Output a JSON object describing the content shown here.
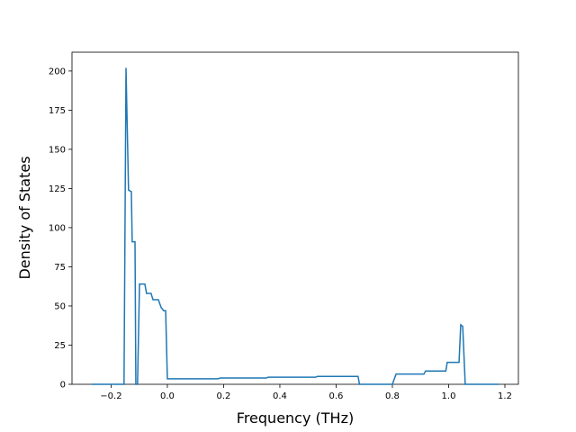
{
  "chart_data": {
    "type": "line",
    "xlabel": "Frequency (THz)",
    "ylabel": "Density of States",
    "x": [
      -0.269,
      -0.154,
      -0.147,
      -0.138,
      -0.128,
      -0.125,
      -0.115,
      -0.112,
      -0.106,
      -0.099,
      -0.08,
      -0.074,
      -0.058,
      -0.051,
      -0.032,
      -0.022,
      -0.013,
      -0.006,
      0.0,
      0.179,
      0.189,
      0.352,
      0.358,
      0.527,
      0.533,
      0.678,
      0.683,
      0.8,
      0.813,
      0.912,
      0.918,
      0.99,
      0.995,
      1.037,
      1.043,
      1.05,
      1.059,
      1.178
    ],
    "series": [
      {
        "name": "DOS",
        "color": "#1f77b4",
        "values": [
          0,
          0,
          202,
          124,
          123,
          91,
          91,
          0,
          0,
          64,
          64,
          58,
          58,
          54,
          54,
          49,
          47,
          47,
          3.5,
          3.5,
          4,
          4,
          4.5,
          4.5,
          5,
          5,
          0,
          0,
          6.5,
          6.5,
          8.5,
          8.5,
          14,
          14,
          38,
          37,
          0,
          0
        ]
      }
    ],
    "xlim": [
      -0.339,
      1.248
    ],
    "ylim": [
      0,
      212
    ],
    "xticks": [
      {
        "value": -0.2,
        "label": "−0.2"
      },
      {
        "value": 0,
        "label": "0.0"
      },
      0.2,
      0.4,
      0.6,
      0.8,
      {
        "value": 1.0,
        "label": "1.0"
      },
      1.2
    ],
    "yticks": [
      0,
      25,
      50,
      75,
      100,
      125,
      150,
      175,
      200
    ]
  }
}
